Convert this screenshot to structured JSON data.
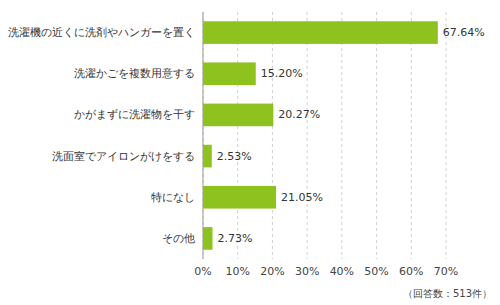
{
  "chart_data": {
    "type": "bar",
    "orientation": "horizontal",
    "categories": [
      "その他",
      "特になし",
      "洗面室でアイロンがけをする",
      "かがまずに洗濯物を干す",
      "洗濯かごを複数用意する",
      "洗濯機の近くに洗剤やハンガーを置く"
    ],
    "values": [
      2.73,
      21.05,
      2.53,
      20.27,
      15.2,
      67.64
    ],
    "value_labels": [
      "2.73%",
      "21.05%",
      "2.53%",
      "20.27%",
      "15.20%",
      "67.64%"
    ],
    "data_labels": true,
    "color": "#8dc21f",
    "xlim": [
      0,
      70
    ],
    "xticks": [
      {
        "value": 0,
        "label": "0%"
      },
      {
        "value": 10,
        "label": "10%"
      },
      {
        "value": 20,
        "label": "20%"
      },
      {
        "value": 30,
        "label": "30%"
      },
      {
        "value": 40,
        "label": "40%"
      },
      {
        "value": 50,
        "label": "50%"
      },
      {
        "value": 60,
        "label": "60%"
      },
      {
        "value": 70,
        "label": "70%"
      }
    ],
    "grid": true,
    "annotations": [
      "（回答数：513件）"
    ]
  }
}
